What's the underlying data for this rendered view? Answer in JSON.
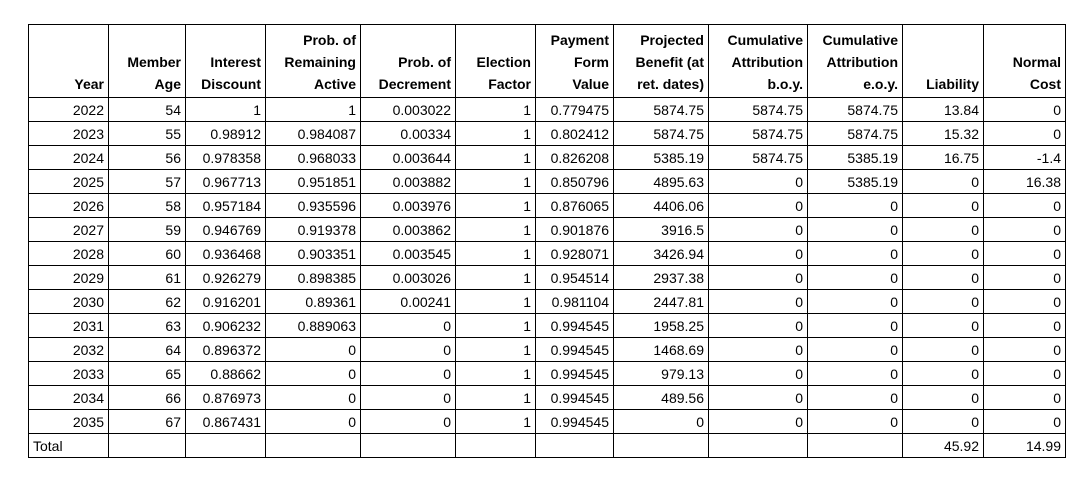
{
  "table": {
    "columns": [
      {
        "key": "year",
        "header": "Year"
      },
      {
        "key": "member-age",
        "header": "Member\nAge"
      },
      {
        "key": "interest-discount",
        "header": "Interest\nDiscount"
      },
      {
        "key": "prob-remaining-active",
        "header": "Prob. of\nRemaining\nActive"
      },
      {
        "key": "prob-of-decrement",
        "header": "Prob. of\nDecrement"
      },
      {
        "key": "election-factor",
        "header": "Election\nFactor"
      },
      {
        "key": "payment-form-value",
        "header": "Payment\nForm\nValue"
      },
      {
        "key": "projected-benefit",
        "header": "Projected\nBenefit (at\nret. dates)"
      },
      {
        "key": "cumulative-attribution-boy",
        "header": "Cumulative\nAttribution\nb.o.y."
      },
      {
        "key": "cumulative-attribution-eoy",
        "header": "Cumulative\nAttribution\ne.o.y."
      },
      {
        "key": "liability",
        "header": "Liability"
      },
      {
        "key": "normal-cost",
        "header": "Normal\nCost"
      }
    ],
    "rows": [
      [
        "2022",
        "54",
        "1",
        "1",
        "0.003022",
        "1",
        "0.779475",
        "5874.75",
        "5874.75",
        "5874.75",
        "13.84",
        "0"
      ],
      [
        "2023",
        "55",
        "0.98912",
        "0.984087",
        "0.00334",
        "1",
        "0.802412",
        "5874.75",
        "5874.75",
        "5874.75",
        "15.32",
        "0"
      ],
      [
        "2024",
        "56",
        "0.978358",
        "0.968033",
        "0.003644",
        "1",
        "0.826208",
        "5385.19",
        "5874.75",
        "5385.19",
        "16.75",
        "-1.4"
      ],
      [
        "2025",
        "57",
        "0.967713",
        "0.951851",
        "0.003882",
        "1",
        "0.850796",
        "4895.63",
        "0",
        "5385.19",
        "0",
        "16.38"
      ],
      [
        "2026",
        "58",
        "0.957184",
        "0.935596",
        "0.003976",
        "1",
        "0.876065",
        "4406.06",
        "0",
        "0",
        "0",
        "0"
      ],
      [
        "2027",
        "59",
        "0.946769",
        "0.919378",
        "0.003862",
        "1",
        "0.901876",
        "3916.5",
        "0",
        "0",
        "0",
        "0"
      ],
      [
        "2028",
        "60",
        "0.936468",
        "0.903351",
        "0.003545",
        "1",
        "0.928071",
        "3426.94",
        "0",
        "0",
        "0",
        "0"
      ],
      [
        "2029",
        "61",
        "0.926279",
        "0.898385",
        "0.003026",
        "1",
        "0.954514",
        "2937.38",
        "0",
        "0",
        "0",
        "0"
      ],
      [
        "2030",
        "62",
        "0.916201",
        "0.89361",
        "0.00241",
        "1",
        "0.981104",
        "2447.81",
        "0",
        "0",
        "0",
        "0"
      ],
      [
        "2031",
        "63",
        "0.906232",
        "0.889063",
        "0",
        "1",
        "0.994545",
        "1958.25",
        "0",
        "0",
        "0",
        "0"
      ],
      [
        "2032",
        "64",
        "0.896372",
        "0",
        "0",
        "1",
        "0.994545",
        "1468.69",
        "0",
        "0",
        "0",
        "0"
      ],
      [
        "2033",
        "65",
        "0.88662",
        "0",
        "0",
        "1",
        "0.994545",
        "979.13",
        "0",
        "0",
        "0",
        "0"
      ],
      [
        "2034",
        "66",
        "0.876973",
        "0",
        "0",
        "1",
        "0.994545",
        "489.56",
        "0",
        "0",
        "0",
        "0"
      ],
      [
        "2035",
        "67",
        "0.867431",
        "0",
        "0",
        "1",
        "0.994545",
        "0",
        "0",
        "0",
        "0",
        "0"
      ]
    ],
    "total_row": [
      "Total",
      "",
      "",
      "",
      "",
      "",
      "",
      "",
      "",
      "",
      "45.92",
      "14.99"
    ]
  }
}
